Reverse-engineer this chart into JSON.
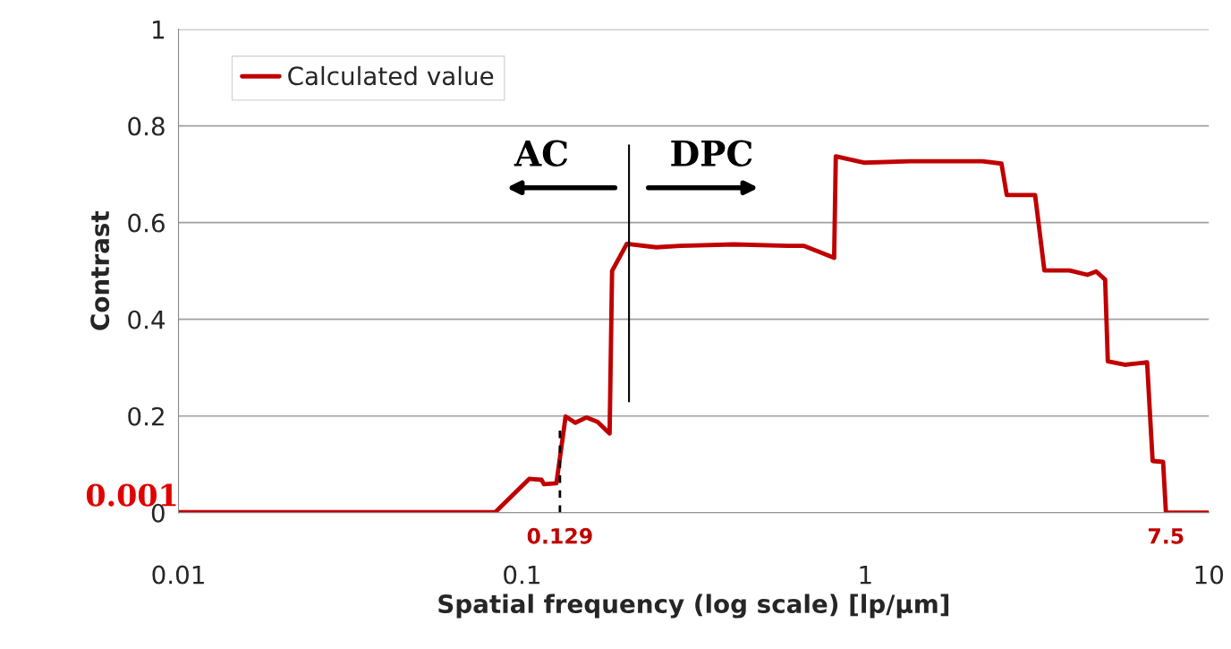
{
  "chart_data": {
    "type": "line",
    "xlabel": "Spatial frequency (log scale) [lp/μm]",
    "ylabel": "Contrast",
    "log": "x",
    "xlim": [
      0.01,
      10
    ],
    "xticks": [
      0.01,
      0.1,
      1,
      10
    ],
    "ylim": [
      0,
      1
    ],
    "yticks": [
      0,
      0.2,
      0.4,
      0.6,
      0.8,
      1
    ],
    "grid": "y",
    "legend": "top left",
    "marker": "none",
    "line_style": "solid",
    "series": [
      {
        "name": "Calculated value",
        "color": "#c00000",
        "x": [
          0.01,
          0.0836,
          0.105,
          0.114,
          0.116,
          0.126,
          0.134,
          0.143,
          0.154,
          0.166,
          0.18,
          0.183,
          0.202,
          0.246,
          0.289,
          0.414,
          0.593,
          0.661,
          0.811,
          0.82,
          0.989,
          1.35,
          2.19,
          2.49,
          2.58,
          3.12,
          3.32,
          3.93,
          4.43,
          4.7,
          4.99,
          5.08,
          5.69,
          6.61,
          6.86,
          7.36,
          7.5,
          10
        ],
        "values": [
          0.001,
          0.001,
          0.07,
          0.068,
          0.059,
          0.061,
          0.199,
          0.186,
          0.197,
          0.188,
          0.164,
          0.5,
          0.556,
          0.549,
          0.552,
          0.555,
          0.552,
          0.552,
          0.527,
          0.737,
          0.724,
          0.727,
          0.727,
          0.722,
          0.657,
          0.657,
          0.501,
          0.501,
          0.492,
          0.499,
          0.482,
          0.313,
          0.306,
          0.311,
          0.107,
          0.105,
          0,
          0
        ]
      }
    ],
    "ref_lines": [
      {
        "axis": "x",
        "value": 0.205,
        "color": "#000000",
        "line_style": "solid"
      },
      {
        "axis": "x",
        "value": 0.129,
        "color": "#000000",
        "line_style": "dashed"
      }
    ],
    "annotations": [
      {
        "text": "0.001",
        "x": 0.01,
        "y": 0.001
      },
      {
        "text": "0.129",
        "x": 0.129,
        "y": 0
      },
      {
        "text": "7.5",
        "x": 7.5,
        "y": 0
      },
      "AC",
      "DPC"
    ]
  }
}
